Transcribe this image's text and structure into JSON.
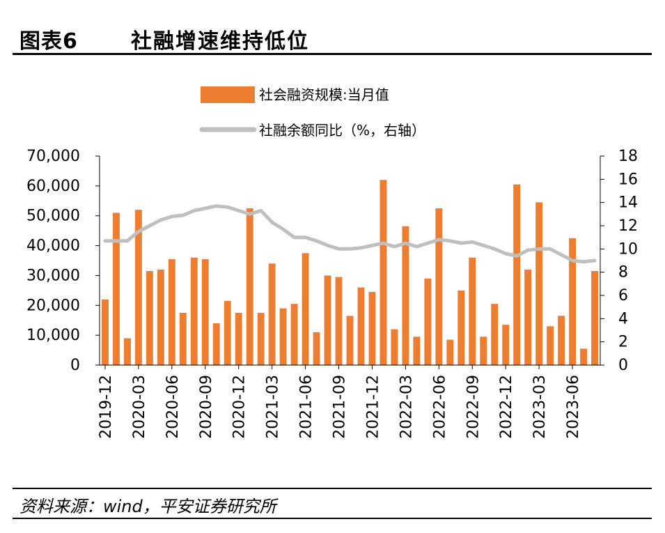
{
  "header": {
    "label": "图表6",
    "title": "社融增速维持低位"
  },
  "footer": {
    "source": "资料来源：wind，平安证券研究所"
  },
  "chart_data": {
    "type": "bar+line",
    "legend": [
      {
        "name": "社会融资规模:当月值",
        "kind": "bar",
        "color": "#ED7D31"
      },
      {
        "name": "社融余额同比（%，右轴）",
        "kind": "line",
        "color": "#BFBFBF"
      }
    ],
    "y_left": {
      "min": 0,
      "max": 70000,
      "ticks": [
        "0",
        "10,000",
        "20,000",
        "30,000",
        "40,000",
        "50,000",
        "60,000",
        "70,000"
      ]
    },
    "y_right": {
      "min": 0,
      "max": 18,
      "ticks": [
        "0",
        "2",
        "4",
        "6",
        "8",
        "10",
        "12",
        "14",
        "16",
        "18"
      ]
    },
    "x_tick_labels": [
      "2019-12",
      "2020-03",
      "2020-06",
      "2020-09",
      "2020-12",
      "2021-03",
      "2021-06",
      "2021-09",
      "2021-12",
      "2022-03",
      "2022-06",
      "2022-09",
      "2022-12",
      "2023-03",
      "2023-06"
    ],
    "categories": [
      "2019-12",
      "2020-01",
      "2020-02",
      "2020-03",
      "2020-04",
      "2020-05",
      "2020-06",
      "2020-07",
      "2020-08",
      "2020-09",
      "2020-10",
      "2020-11",
      "2020-12",
      "2021-01",
      "2021-02",
      "2021-03",
      "2021-04",
      "2021-05",
      "2021-06",
      "2021-07",
      "2021-08",
      "2021-09",
      "2021-10",
      "2021-11",
      "2021-12",
      "2022-01",
      "2022-02",
      "2022-03",
      "2022-04",
      "2022-05",
      "2022-06",
      "2022-07",
      "2022-08",
      "2022-09",
      "2022-10",
      "2022-11",
      "2022-12",
      "2023-01",
      "2023-02",
      "2023-03",
      "2023-04",
      "2023-05",
      "2023-06",
      "2023-07",
      "2023-08"
    ],
    "series": [
      {
        "name": "社会融资规模:当月值",
        "axis": "left",
        "values": [
          22000,
          51000,
          9000,
          52000,
          31500,
          32000,
          35500,
          17500,
          36000,
          35500,
          14000,
          21500,
          17500,
          52500,
          17500,
          34000,
          19000,
          20500,
          37500,
          11000,
          30000,
          29500,
          16500,
          26000,
          24500,
          62000,
          12000,
          46500,
          9500,
          29000,
          52500,
          8500,
          25000,
          36000,
          9500,
          20500,
          13500,
          60500,
          32000,
          54500,
          13000,
          16500,
          42500,
          5500,
          31500
        ]
      },
      {
        "name": "社融余额同比（%，右轴）",
        "axis": "right",
        "values": [
          10.7,
          10.7,
          10.7,
          11.5,
          12.0,
          12.5,
          12.8,
          12.9,
          13.3,
          13.5,
          13.7,
          13.6,
          13.3,
          13.0,
          13.3,
          12.3,
          11.7,
          11.0,
          11.0,
          10.7,
          10.3,
          10.0,
          10.0,
          10.1,
          10.3,
          10.5,
          10.2,
          10.5,
          10.2,
          10.5,
          10.8,
          10.7,
          10.5,
          10.6,
          10.3,
          10.0,
          9.6,
          9.4,
          9.9,
          10.0,
          10.0,
          9.5,
          9.0,
          8.9,
          9.0
        ]
      }
    ]
  }
}
